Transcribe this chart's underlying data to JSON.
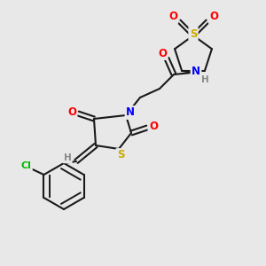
{
  "bg_color": "#e8e8e8",
  "bond_color": "#1a1a1a",
  "atom_colors": {
    "O": "#ff0000",
    "N": "#0000ff",
    "S": "#ccaa00",
    "Cl": "#00bb00",
    "H": "#888888",
    "C": "#1a1a1a"
  },
  "figsize": [
    3.0,
    3.0
  ],
  "dpi": 100
}
